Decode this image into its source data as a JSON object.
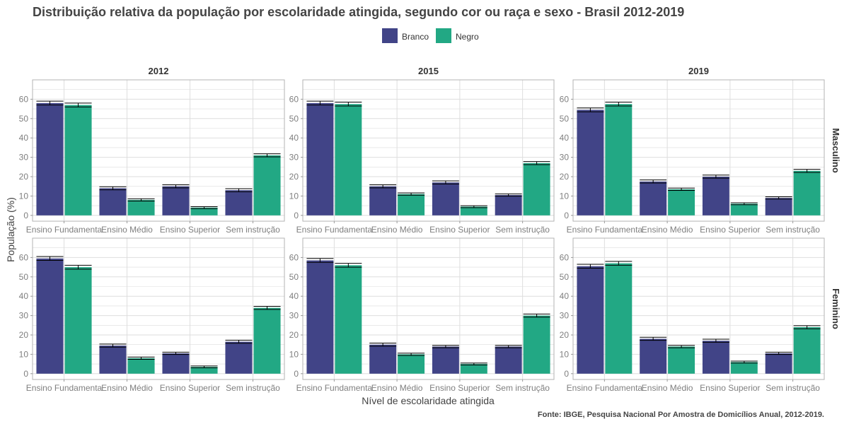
{
  "title": "Distribuição relativa da população por escolaridade atingida, segundo cor ou raça e sexo - Brasil 2012-2019",
  "source": "Fonte: IBGE, Pesquisa Nacional Por Amostra de Domicílios Anual, 2012-2019.",
  "colors": {
    "Branco": "#414487",
    "Negro": "#22A884",
    "panel_border": "#b3b3b3",
    "grid": "#dedede",
    "errorbar": "#000000"
  },
  "chart_data": {
    "type": "bar",
    "xlabel": "Nível de escolaridade atingida",
    "ylabel": "População (%)",
    "ylim": [
      -3,
      70
    ],
    "yticks": [
      0,
      10,
      20,
      30,
      40,
      50,
      60
    ],
    "categories": [
      "Ensino Fundamental",
      "Ensino Médio",
      "Ensino Superior",
      "Sem instrução"
    ],
    "category_tick_labels": [
      "Ensino Fundamenta",
      "Ensino Médio",
      "Ensino Superior",
      "Sem instrução"
    ],
    "legend": {
      "position": "top",
      "entries": [
        "Branco",
        "Negro"
      ]
    },
    "columns": [
      "2012",
      "2015",
      "2019"
    ],
    "rows": [
      "Masculino",
      "Feminino"
    ],
    "grid": true,
    "panels": [
      {
        "column": "2012",
        "row": "Masculino",
        "series": [
          {
            "name": "Branco",
            "values": [
              58,
              14,
              15,
              13
            ],
            "err": [
              1,
              0.8,
              0.8,
              0.8
            ]
          },
          {
            "name": "Negro",
            "values": [
              57,
              8,
              4,
              31
            ],
            "err": [
              1,
              0.6,
              0.5,
              0.8
            ]
          }
        ]
      },
      {
        "column": "2015",
        "row": "Masculino",
        "series": [
          {
            "name": "Branco",
            "values": [
              58,
              15,
              17,
              10.5
            ],
            "err": [
              1,
              0.8,
              0.8,
              0.6
            ]
          },
          {
            "name": "Negro",
            "values": [
              57.5,
              11,
              4.5,
              27
            ],
            "err": [
              1,
              0.6,
              0.5,
              0.8
            ]
          }
        ]
      },
      {
        "column": "2019",
        "row": "Masculino",
        "series": [
          {
            "name": "Branco",
            "values": [
              54.5,
              17.5,
              20,
              9
            ],
            "err": [
              1,
              0.8,
              0.8,
              0.6
            ]
          },
          {
            "name": "Negro",
            "values": [
              57.5,
              13.5,
              6,
              23
            ],
            "err": [
              1,
              0.6,
              0.5,
              0.8
            ]
          }
        ]
      },
      {
        "column": "2012",
        "row": "Feminino",
        "series": [
          {
            "name": "Branco",
            "values": [
              59.5,
              14.5,
              10.5,
              16.5
            ],
            "err": [
              1,
              0.8,
              0.6,
              0.8
            ]
          },
          {
            "name": "Negro",
            "values": [
              55,
              8,
              3.5,
              34
            ],
            "err": [
              1,
              0.6,
              0.5,
              0.8
            ]
          }
        ]
      },
      {
        "column": "2015",
        "row": "Feminino",
        "series": [
          {
            "name": "Branco",
            "values": [
              58.5,
              15,
              14,
              14
            ],
            "err": [
              1,
              0.8,
              0.6,
              0.6
            ]
          },
          {
            "name": "Negro",
            "values": [
              56,
              10,
              5,
              30
            ],
            "err": [
              1,
              0.6,
              0.5,
              0.8
            ]
          }
        ]
      },
      {
        "column": "2019",
        "row": "Feminino",
        "series": [
          {
            "name": "Branco",
            "values": [
              55.5,
              18,
              17,
              10.5
            ],
            "err": [
              1,
              0.8,
              0.8,
              0.6
            ]
          },
          {
            "name": "Negro",
            "values": [
              57,
              14,
              6,
              24
            ],
            "err": [
              1,
              0.6,
              0.5,
              0.8
            ]
          }
        ]
      }
    ]
  }
}
